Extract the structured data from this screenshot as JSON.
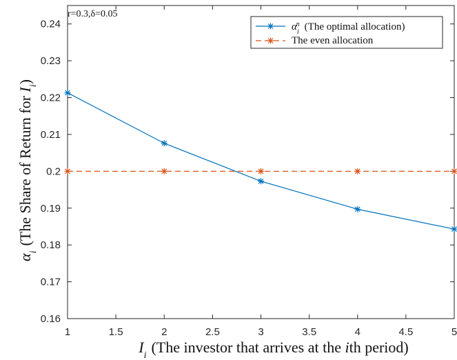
{
  "chart_data": {
    "type": "line",
    "annotation": "r=0.3,δ=0.05",
    "xlabel": {
      "prefix": "I",
      "subscript": "i",
      "text": "(The investor that arrives at the ",
      "italic_token": "i",
      "suffix": "th period)"
    },
    "ylabel": {
      "prefix": "α",
      "subscript": "i",
      "text": "(The Share of Return for ",
      "italic_token": "I",
      "italic_subscript": "i",
      "suffix": ")"
    },
    "xlim": [
      1,
      5
    ],
    "ylim": [
      0.16,
      0.245
    ],
    "xticks": [
      1,
      1.5,
      2,
      2.5,
      3,
      3.5,
      4,
      4.5,
      5
    ],
    "xtick_labels": [
      "1",
      "1.5",
      "2",
      "2.5",
      "3",
      "3.5",
      "4",
      "4.5",
      "5"
    ],
    "yticks": [
      0.16,
      0.17,
      0.18,
      0.19,
      0.2,
      0.21,
      0.22,
      0.23,
      0.24
    ],
    "ytick_labels": [
      "0.16",
      "0.17",
      "0.18",
      "0.19",
      "0.2",
      "0.21",
      "0.22",
      "0.23",
      "0.24"
    ],
    "grid": false,
    "legend_position": "top-right",
    "series": [
      {
        "name": "α_i^n (The optimal allocation)",
        "legend": {
          "prefix": "α",
          "subscript": "i",
          "superscript": "n",
          "text": "(The optimal allocation)"
        },
        "color": "#0072BD",
        "line_style": "solid",
        "marker": "asterisk",
        "x": [
          1,
          2,
          3,
          4,
          5
        ],
        "values": [
          0.2213,
          0.2076,
          0.1973,
          0.1897,
          0.1843
        ]
      },
      {
        "name": "The even allocation",
        "legend": {
          "text": "The even allocation"
        },
        "color": "#D95319",
        "line_style": "dashed",
        "marker": "asterisk",
        "x": [
          1,
          2,
          3,
          4,
          5
        ],
        "values": [
          0.2,
          0.2,
          0.2,
          0.2,
          0.2
        ]
      }
    ]
  }
}
